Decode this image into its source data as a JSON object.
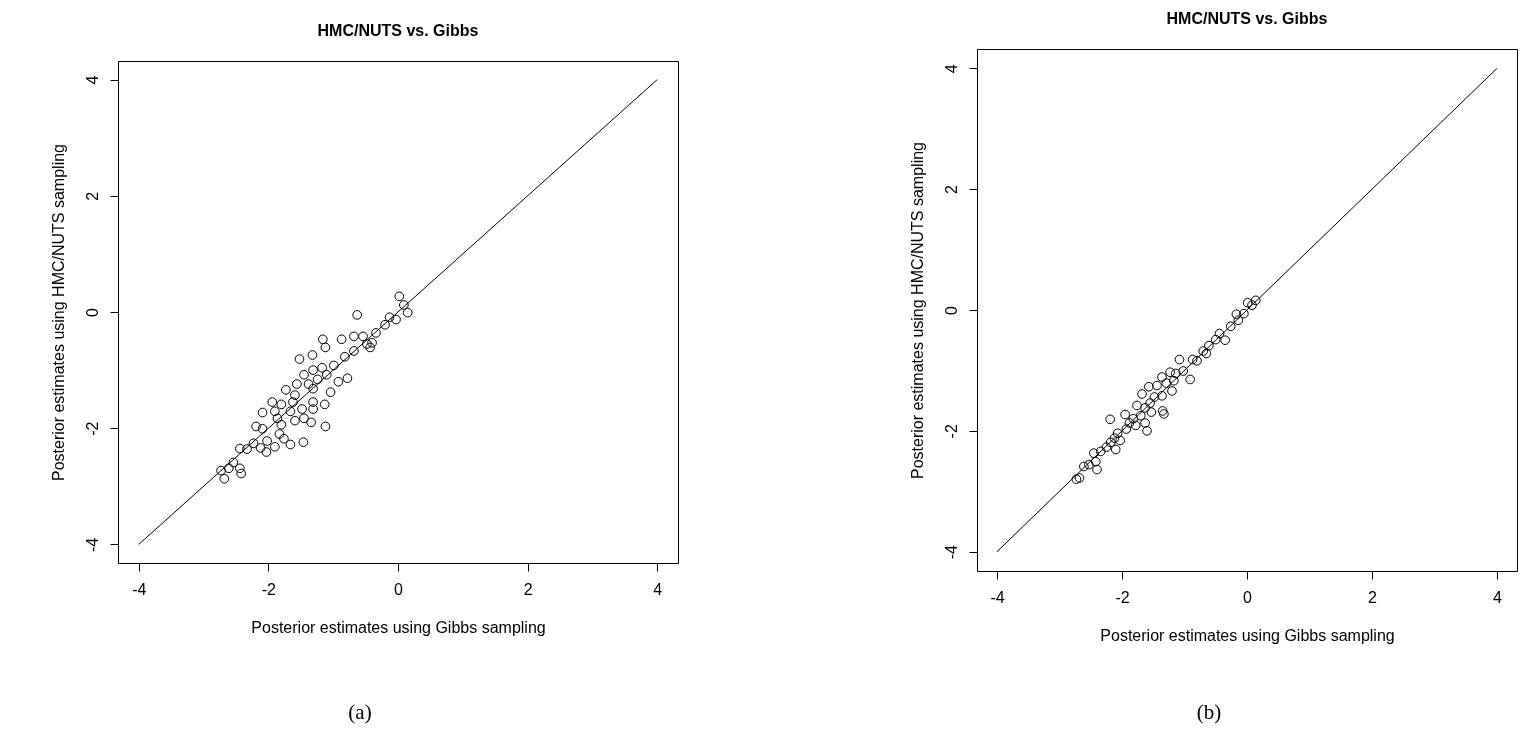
{
  "chart_data": [
    {
      "type": "scatter",
      "title": "HMC/NUTS vs. Gibbs",
      "xlabel": "Posterior estimates using Gibbs sampling",
      "ylabel": "Posterior estimates using HMC/NUTS sampling",
      "annotations": [
        "(a)"
      ],
      "xlim": [
        -4.32,
        4.32
      ],
      "ylim": [
        -4.32,
        4.32
      ],
      "xticks": [
        -4,
        -2,
        0,
        2,
        4
      ],
      "yticks": [
        -4,
        -2,
        0,
        2,
        4
      ],
      "marker": "circle",
      "series": [
        {
          "type": "scatter",
          "color": "#000000",
          "x": [
            0.02,
            0.09,
            0.15,
            -0.63,
            -0.03,
            -0.13,
            -0.2,
            -0.34,
            -1.16,
            -0.87,
            -1.12,
            -0.68,
            -0.54,
            -0.43,
            -0.68,
            -1.32,
            -1.52,
            -0.82,
            -0.99,
            -1.17,
            -1.31,
            -1.45,
            -1.24,
            -0.78,
            -0.92,
            -1.38,
            -1.56,
            -1.1,
            -1.04,
            -1.31,
            -1.73,
            -1.59,
            -1.94,
            -1.8,
            -1.62,
            -1.31,
            -1.13,
            -2.09,
            -1.9,
            -1.66,
            -1.48,
            -1.31,
            -1.86,
            -1.59,
            -1.8,
            -1.45,
            -1.34,
            -2.19,
            -2.09,
            -1.12,
            -1.83,
            -1.76,
            -1.66,
            -1.46,
            -2.23,
            -2.02,
            -2.12,
            -1.9,
            -2.03,
            -2.33,
            -2.44,
            -2.54,
            -2.61,
            -2.73,
            -2.68,
            -2.44,
            -2.42,
            -0.4,
            -0.48
          ],
          "values": [
            0.27,
            0.12,
            -0.01,
            -0.05,
            -0.13,
            -0.09,
            -0.22,
            -0.36,
            -0.47,
            -0.47,
            -0.61,
            -0.42,
            -0.42,
            -0.61,
            -0.67,
            -0.74,
            -0.81,
            -0.77,
            -0.92,
            -0.96,
            -1.0,
            -1.08,
            -1.16,
            -1.14,
            -1.2,
            -1.24,
            -1.24,
            -1.08,
            -1.38,
            -1.32,
            -1.34,
            -1.43,
            -1.55,
            -1.59,
            -1.55,
            -1.55,
            -1.59,
            -1.73,
            -1.71,
            -1.71,
            -1.67,
            -1.67,
            -1.83,
            -1.87,
            -1.94,
            -1.83,
            -1.9,
            -1.97,
            -2.01,
            -1.97,
            -2.1,
            -2.18,
            -2.28,
            -2.24,
            -2.26,
            -2.22,
            -2.34,
            -2.32,
            -2.41,
            -2.36,
            -2.35,
            -2.59,
            -2.69,
            -2.73,
            -2.87,
            -2.69,
            -2.78,
            -0.53,
            -0.55
          ]
        },
        {
          "type": "line",
          "marker": "none",
          "color": "#000000",
          "x": [
            -4,
            4
          ],
          "values": [
            -4,
            4
          ]
        }
      ]
    },
    {
      "type": "scatter",
      "title": "HMC/NUTS vs. Gibbs",
      "xlabel": "Posterior estimates using Gibbs sampling",
      "ylabel": "Posterior estimates using HMC/NUTS sampling",
      "annotations": [
        "(b)"
      ],
      "xlim": [
        -4.32,
        4.32
      ],
      "ylim": [
        -4.32,
        4.32
      ],
      "xticks": [
        -4,
        -2,
        0,
        2,
        4
      ],
      "yticks": [
        -4,
        -2,
        0,
        2,
        4
      ],
      "marker": "circle",
      "series": [
        {
          "type": "scatter",
          "color": "#000000",
          "x": [
            0.14,
            0.01,
            0.08,
            -0.05,
            -0.17,
            -0.14,
            -0.26,
            -0.44,
            -0.35,
            -0.5,
            -0.61,
            -0.7,
            -0.65,
            -0.8,
            -1.08,
            -0.87,
            -0.91,
            -1.02,
            -1.14,
            -1.23,
            -1.36,
            -1.17,
            -1.29,
            -1.44,
            -1.57,
            -1.2,
            -1.36,
            -1.48,
            -1.68,
            -1.55,
            -1.76,
            -1.63,
            -1.35,
            -1.33,
            -1.53,
            -1.7,
            -1.82,
            -1.95,
            -2.19,
            -1.63,
            -1.88,
            -1.78,
            -1.93,
            -1.6,
            -2.07,
            -2.12,
            -2.18,
            -2.03,
            -2.1,
            -2.25,
            -2.34,
            -2.45,
            -2.42,
            -2.61,
            -2.53,
            -2.4,
            -2.68,
            -2.73
          ],
          "values": [
            0.16,
            0.12,
            0.08,
            -0.06,
            -0.07,
            -0.17,
            -0.27,
            -0.39,
            -0.5,
            -0.49,
            -0.59,
            -0.68,
            -0.72,
            -0.84,
            -0.82,
            -0.82,
            -1.15,
            -1.01,
            -1.05,
            -1.03,
            -1.11,
            -1.17,
            -1.21,
            -1.25,
            -1.27,
            -1.34,
            -1.42,
            -1.44,
            -1.39,
            -1.54,
            -1.58,
            -1.62,
            -1.67,
            -1.72,
            -1.69,
            -1.75,
            -1.8,
            -1.73,
            -1.81,
            -1.87,
            -1.87,
            -1.91,
            -1.97,
            -2.0,
            -2.04,
            -2.12,
            -2.19,
            -2.16,
            -2.31,
            -2.27,
            -2.34,
            -2.37,
            -2.51,
            -2.59,
            -2.56,
            -2.64,
            -2.78,
            -2.8
          ]
        },
        {
          "type": "line",
          "marker": "none",
          "color": "#000000",
          "x": [
            -4,
            4
          ],
          "values": [
            -4,
            4
          ]
        }
      ]
    }
  ]
}
